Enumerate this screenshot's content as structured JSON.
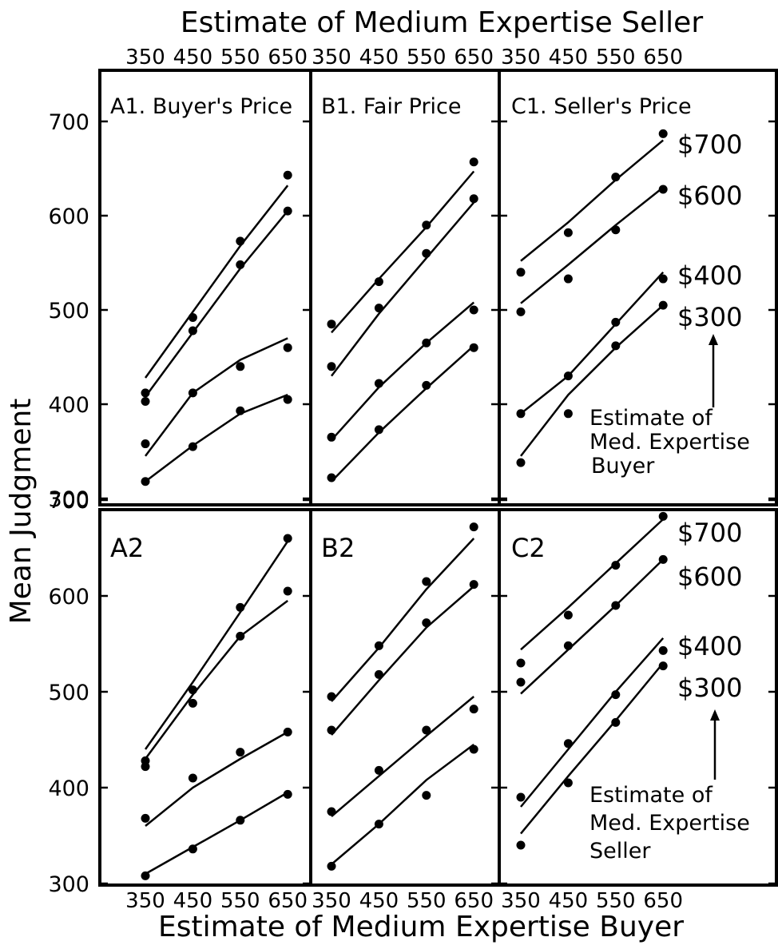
{
  "chart_data": {
    "type": "line",
    "title_top": "Estimate of Medium Expertise Seller",
    "title_bottom": "Estimate of Medium Expertise Buyer",
    "ylabel": "Mean Judgment",
    "x_ticks": [
      "350",
      "450",
      "550",
      "650"
    ],
    "xlim": [
      350,
      650
    ],
    "ylim": [
      300,
      750
    ],
    "y_ticks": [
      "300",
      "400",
      "500",
      "600",
      "700"
    ],
    "series_labels_row1": [
      "$700",
      "$600",
      "$400",
      "$300"
    ],
    "series_labels_row2": [
      "$700",
      "$600",
      "$400",
      "$300"
    ],
    "note_row1": [
      "Estimate of",
      "Med. Expertise",
      "Buyer"
    ],
    "note_row2": [
      "Estimate of",
      "Med. Expertise",
      "Seller"
    ],
    "panels": [
      {
        "id": "A1",
        "label": "A1. Buyer's Price",
        "row": 0,
        "col": 0,
        "points": [
          [
            412,
            492,
            573,
            643
          ],
          [
            403,
            478,
            548,
            605
          ],
          [
            358,
            412,
            440,
            460
          ],
          [
            318,
            355,
            393,
            405
          ]
        ],
        "fits": [
          [
            428,
            498,
            568,
            632
          ],
          [
            408,
            476,
            544,
            605
          ],
          [
            345,
            412,
            447,
            470
          ],
          [
            318,
            356,
            390,
            410
          ]
        ]
      },
      {
        "id": "B1",
        "label": "B1. Fair Price",
        "row": 0,
        "col": 1,
        "points": [
          [
            485,
            530,
            590,
            657
          ],
          [
            440,
            502,
            560,
            618
          ],
          [
            365,
            422,
            465,
            500
          ],
          [
            322,
            373,
            420,
            460
          ]
        ],
        "fits": [
          [
            476,
            533,
            588,
            647
          ],
          [
            430,
            496,
            555,
            614
          ],
          [
            362,
            418,
            465,
            508
          ],
          [
            318,
            370,
            417,
            462
          ]
        ]
      },
      {
        "id": "C1",
        "label": "C1. Seller's Price",
        "row": 0,
        "col": 2,
        "points": [
          [
            540,
            582,
            641,
            687
          ],
          [
            498,
            533,
            585,
            628
          ],
          [
            390,
            430,
            487,
            533
          ],
          [
            338,
            390,
            462,
            505
          ]
        ],
        "fits": [
          [
            552,
            593,
            638,
            680
          ],
          [
            507,
            548,
            590,
            630
          ],
          [
            390,
            430,
            485,
            540
          ],
          [
            345,
            410,
            460,
            505
          ]
        ]
      },
      {
        "id": "A2",
        "label": "A2",
        "row": 1,
        "col": 0,
        "points": [
          [
            428,
            502,
            588,
            660
          ],
          [
            422,
            488,
            558,
            605
          ],
          [
            368,
            410,
            437,
            458
          ],
          [
            308,
            336,
            366,
            393
          ]
        ],
        "fits": [
          [
            440,
            510,
            583,
            657
          ],
          [
            430,
            497,
            558,
            595
          ],
          [
            360,
            400,
            430,
            458
          ],
          [
            310,
            338,
            366,
            395
          ]
        ]
      },
      {
        "id": "B2",
        "label": "B2",
        "row": 1,
        "col": 1,
        "points": [
          [
            495,
            548,
            615,
            672
          ],
          [
            460,
            518,
            572,
            612
          ],
          [
            375,
            418,
            460,
            482
          ],
          [
            318,
            362,
            392,
            440
          ]
        ],
        "fits": [
          [
            490,
            546,
            607,
            660
          ],
          [
            455,
            512,
            567,
            610
          ],
          [
            370,
            412,
            454,
            495
          ],
          [
            320,
            362,
            408,
            445
          ]
        ]
      },
      {
        "id": "C2",
        "label": "C2",
        "row": 1,
        "col": 2,
        "points": [
          [
            530,
            580,
            632,
            683
          ],
          [
            510,
            548,
            590,
            638
          ],
          [
            390,
            446,
            497,
            543
          ],
          [
            340,
            405,
            468,
            527
          ]
        ],
        "fits": [
          [
            544,
            588,
            634,
            680
          ],
          [
            498,
            544,
            590,
            638
          ],
          [
            380,
            440,
            500,
            556
          ],
          [
            352,
            412,
            470,
            530
          ]
        ]
      }
    ]
  }
}
